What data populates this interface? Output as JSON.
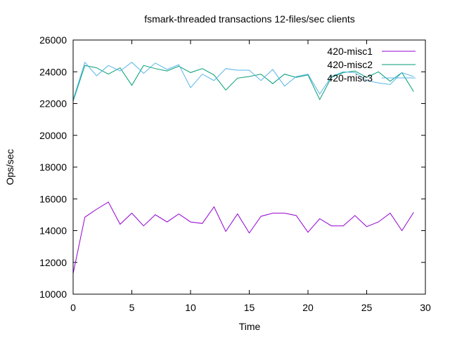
{
  "chart_data": {
    "type": "line",
    "title": "fsmark-threaded transactions 12-files/sec clients",
    "xlabel": "Time",
    "ylabel": "Ops/sec",
    "xlim": [
      0,
      30
    ],
    "ylim": [
      10000,
      26000
    ],
    "x_ticks": [
      "0",
      "5",
      "10",
      "15",
      "20",
      "25",
      "30"
    ],
    "y_ticks": [
      "10000",
      "12000",
      "14000",
      "16000",
      "18000",
      "20000",
      "22000",
      "24000",
      "26000"
    ],
    "grid": false,
    "legend_position": "top-right",
    "x": [
      0,
      1,
      2,
      3,
      4,
      5,
      6,
      7,
      8,
      9,
      10,
      11,
      12,
      13,
      14,
      15,
      16,
      17,
      18,
      19,
      20,
      21,
      22,
      23,
      24,
      25,
      26,
      27,
      28,
      29
    ],
    "series": [
      {
        "name": "420-misc1",
        "color": "#9400d3",
        "values": [
          11300,
          14850,
          15350,
          15800,
          14400,
          15100,
          14300,
          15000,
          14550,
          15050,
          14550,
          14450,
          15500,
          13950,
          15050,
          13850,
          14900,
          15100,
          15100,
          14950,
          13900,
          14750,
          14300,
          14300,
          14950,
          14250,
          14550,
          15100,
          14000,
          15150
        ]
      },
      {
        "name": "420-misc2",
        "color": "#009e73",
        "values": [
          22150,
          24400,
          24250,
          23850,
          24250,
          23150,
          24400,
          24200,
          24050,
          24350,
          23950,
          24200,
          23800,
          22850,
          23600,
          23700,
          23850,
          23250,
          23850,
          23650,
          23800,
          22250,
          23650,
          23950,
          24050,
          23650,
          24000,
          23400,
          23950,
          22750
        ]
      },
      {
        "name": "420-misc3",
        "color": "#56b4e9",
        "values": [
          22250,
          24600,
          23750,
          24400,
          24050,
          24600,
          23900,
          24550,
          24150,
          24450,
          23000,
          23850,
          23450,
          24200,
          24100,
          24100,
          23450,
          24150,
          23100,
          23700,
          23850,
          22600,
          23700,
          24000,
          23950,
          23450,
          23300,
          23200,
          23950,
          23700
        ]
      }
    ]
  }
}
